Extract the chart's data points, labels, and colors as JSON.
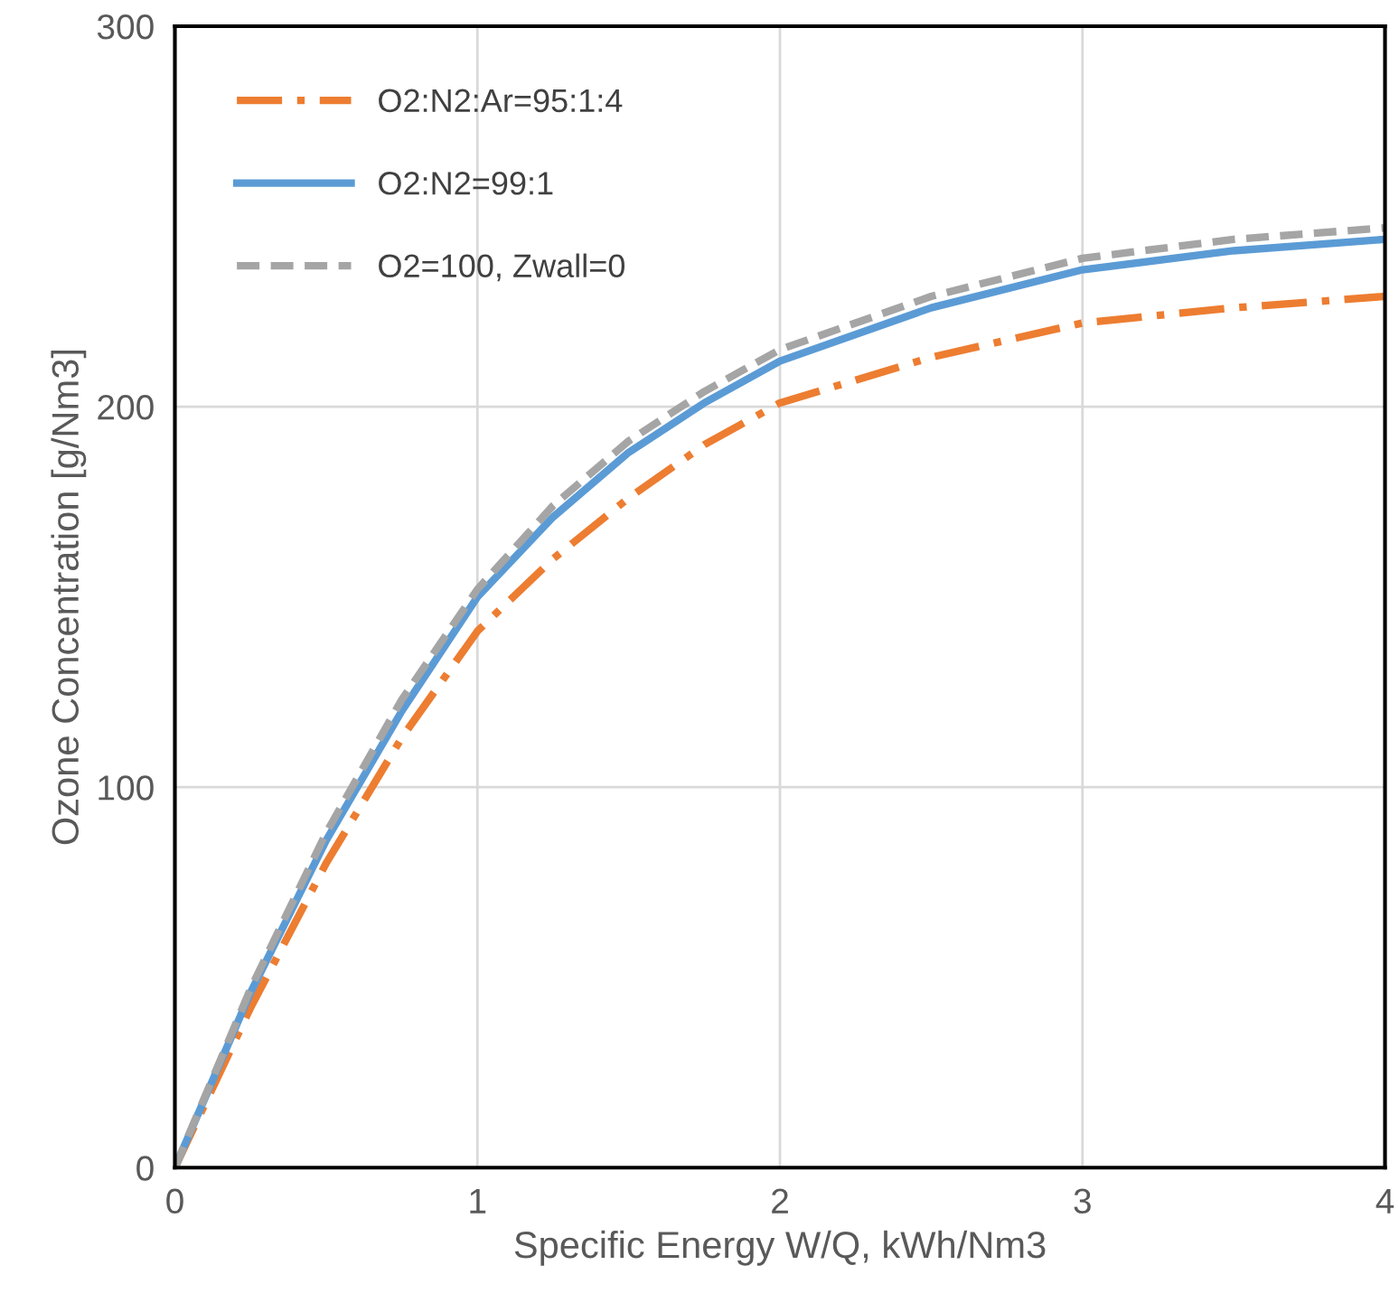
{
  "chart_data": {
    "type": "line",
    "xlabel": "Specific Energy W/Q, kWh/Nm3",
    "ylabel": "Ozone Concentration [g/Nm3]",
    "x": [
      0,
      0.25,
      0.5,
      0.75,
      1,
      1.25,
      1.5,
      1.75,
      2,
      2.5,
      3,
      3.5,
      4
    ],
    "series": [
      {
        "name": "O2:N2:Ar=95:1:4",
        "color": "#ed7d31",
        "line_style": "dashdot",
        "values": [
          0,
          42,
          80,
          113,
          141,
          160,
          176,
          190,
          201,
          213,
          222,
          226,
          229
        ]
      },
      {
        "name": "O2:N2=99:1",
        "color": "#5b9bd5",
        "line_style": "solid",
        "values": [
          0,
          46,
          86,
          120,
          150,
          171,
          188,
          201,
          212,
          226,
          236,
          241,
          244
        ]
      },
      {
        "name": "O2=100, Zwall=0",
        "color": "#a5a5a5",
        "line_style": "dashed",
        "values": [
          0,
          47,
          88,
          123,
          152,
          174,
          191,
          204,
          215,
          229,
          239,
          244,
          247
        ]
      }
    ],
    "xlim": [
      0,
      4
    ],
    "ylim": [
      0,
      300
    ],
    "xticks": [
      0,
      1,
      2,
      3,
      4
    ],
    "yticks": [
      0,
      100,
      200,
      300
    ],
    "grid": true,
    "legend": "top left",
    "marker": "none"
  }
}
